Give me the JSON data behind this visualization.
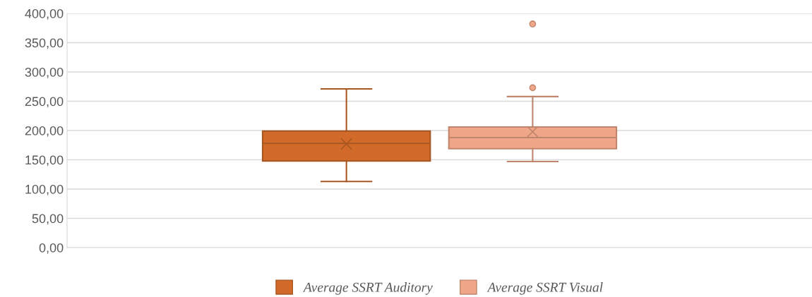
{
  "chart_data": {
    "type": "box",
    "categories": [
      null
    ],
    "ylim": [
      0,
      400
    ],
    "yticks": [
      {
        "value": 0,
        "label": "0,00"
      },
      {
        "value": 50,
        "label": "50,00"
      },
      {
        "value": 100,
        "label": "100,00"
      },
      {
        "value": 150,
        "label": "150,00"
      },
      {
        "value": 200,
        "label": "200,00"
      },
      {
        "value": 250,
        "label": "250,00"
      },
      {
        "value": 300,
        "label": "300,00"
      },
      {
        "value": 350,
        "label": "350,00"
      },
      {
        "value": 400,
        "label": "400,00"
      }
    ],
    "grid": "y",
    "legend": "bottom",
    "tick_labels": "y",
    "series": [
      {
        "name": "Average SSRT Auditory",
        "color": "#d26b2a",
        "boxes": [
          {
            "low": 113,
            "q1": 148,
            "median": 178,
            "q3": 199,
            "high": 271,
            "mean": 177
          }
        ]
      },
      {
        "name": "Average SSRT Visual",
        "color": "#f0a688",
        "boxes": [
          {
            "low": 147,
            "q1": 169,
            "median": 188,
            "q3": 206,
            "high": 258,
            "mean": 198,
            "outliers": [
              273,
              382
            ]
          }
        ]
      }
    ]
  }
}
